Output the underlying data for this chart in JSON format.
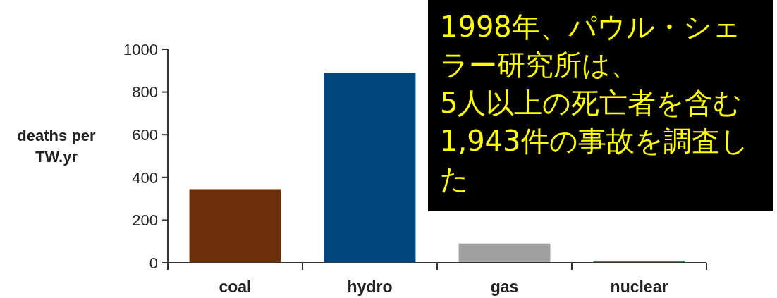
{
  "chart_data": {
    "type": "bar",
    "ylabel": "deaths per\nTW.yr",
    "categories": [
      "coal",
      "hydro",
      "gas",
      "nuclear"
    ],
    "values": [
      345,
      890,
      90,
      10
    ],
    "colors": [
      "#6b2f0a",
      "#00467f",
      "#a0a0a0",
      "#12a05a"
    ],
    "ylim": [
      0,
      1000
    ],
    "yticks": [
      0,
      200,
      400,
      600,
      800,
      1000
    ],
    "grid": false,
    "annotations": [
      "1998年、パウル・シェラー研究所は、",
      "5人以上の死亡者を含む1,943件の事故を調査した"
    ]
  }
}
